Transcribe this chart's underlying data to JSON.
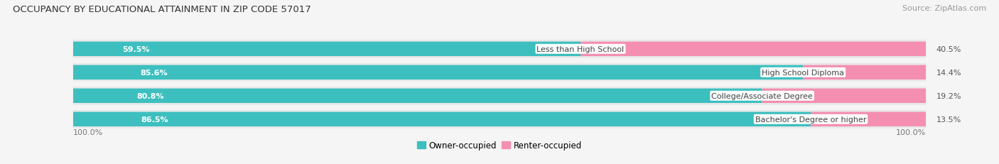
{
  "title": "OCCUPANCY BY EDUCATIONAL ATTAINMENT IN ZIP CODE 57017",
  "source": "Source: ZipAtlas.com",
  "categories": [
    "Less than High School",
    "High School Diploma",
    "College/Associate Degree",
    "Bachelor's Degree or higher"
  ],
  "owner_pct": [
    59.5,
    85.6,
    80.8,
    86.5
  ],
  "renter_pct": [
    40.5,
    14.4,
    19.2,
    13.5
  ],
  "owner_color": "#3DBFBF",
  "renter_color": "#F48FB1",
  "bg_color": "#f5f5f5",
  "row_bg_color": "#e8e8e8",
  "title_fontsize": 9.5,
  "label_fontsize": 8,
  "tick_fontsize": 8,
  "source_fontsize": 8,
  "legend_fontsize": 8.5,
  "axis_label_left": "100.0%",
  "axis_label_right": "100.0%"
}
